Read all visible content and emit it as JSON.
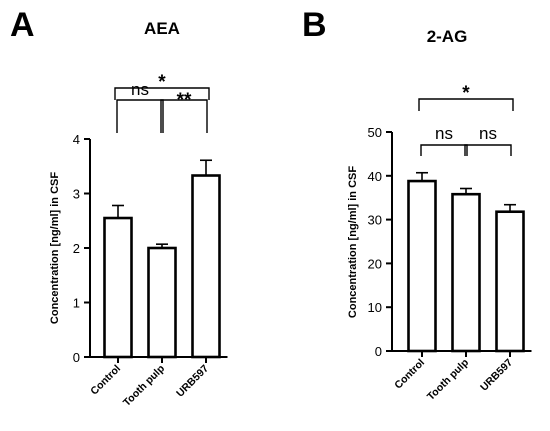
{
  "chart_data": [
    {
      "type": "bar",
      "panel": "A",
      "title": "AEA",
      "ylabel": "Concentration [ng/ml] in CSF",
      "xlabel": "",
      "categories": [
        "Control",
        "Tooth pulp",
        "URB597"
      ],
      "values": [
        2.55,
        2.0,
        3.33
      ],
      "errors": [
        0.23,
        0.07,
        0.28
      ],
      "ylim": [
        0,
        4
      ],
      "yticks": [
        "0",
        "1",
        "2",
        "3",
        "4"
      ],
      "grid": false,
      "legend": "none",
      "significance": [
        {
          "from": 0,
          "to": 1,
          "label": "ns"
        },
        {
          "from": 1,
          "to": 2,
          "label": "**"
        },
        {
          "from": 0,
          "to": 2,
          "label": "*"
        }
      ]
    },
    {
      "type": "bar",
      "panel": "B",
      "title": "2-AG",
      "ylabel": "Concentration [ng/ml] in CSF",
      "xlabel": "",
      "categories": [
        "Control",
        "Tooth pulp",
        "URB597"
      ],
      "values": [
        38.8,
        35.8,
        31.8
      ],
      "errors": [
        1.9,
        1.3,
        1.6
      ],
      "ylim": [
        0,
        50
      ],
      "yticks": [
        "0",
        "10",
        "20",
        "30",
        "40",
        "50"
      ],
      "grid": false,
      "legend": "none",
      "significance": [
        {
          "from": 0,
          "to": 1,
          "label": "ns"
        },
        {
          "from": 1,
          "to": 2,
          "label": "ns"
        },
        {
          "from": 0,
          "to": 2,
          "label": "*"
        }
      ]
    }
  ]
}
